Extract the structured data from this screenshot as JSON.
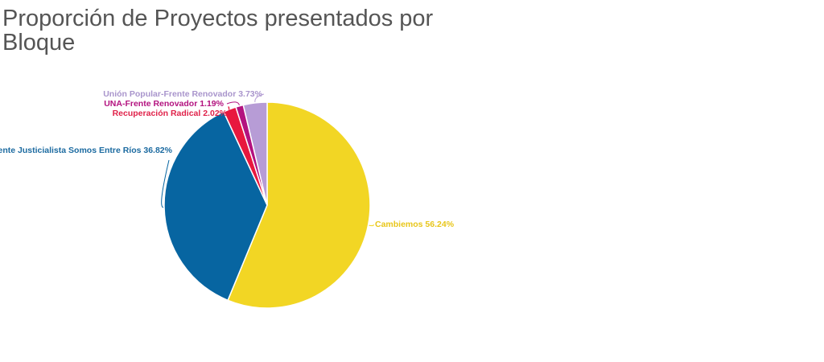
{
  "chart_data": {
    "type": "pie",
    "title": "Proporción de Proyectos presentados por Bloque",
    "slices": [
      {
        "label": "Cambiemos",
        "value": 56.24,
        "display": "56.24%",
        "color": "#f2d624",
        "text_color": "#e8c61a"
      },
      {
        "label": "Frente Justicialista Somos Entre Ríos",
        "value": 36.82,
        "display": "36.82%",
        "color": "#0765a1",
        "text_color": "#1b6aa0"
      },
      {
        "label": "Recuperación Radical",
        "value": 2.02,
        "display": "2.02%",
        "color": "#e8183e",
        "text_color": "#e0224a"
      },
      {
        "label": "UNA-Frente Renovador",
        "value": 1.19,
        "display": "1.19%",
        "color": "#b3127f",
        "text_color": "#b3127f"
      },
      {
        "label": "Unión Popular-Frente Renovador",
        "value": 3.73,
        "display": "3.73%",
        "color": "#b79cd6",
        "text_color": "#a995cc"
      }
    ],
    "legend": "none"
  }
}
